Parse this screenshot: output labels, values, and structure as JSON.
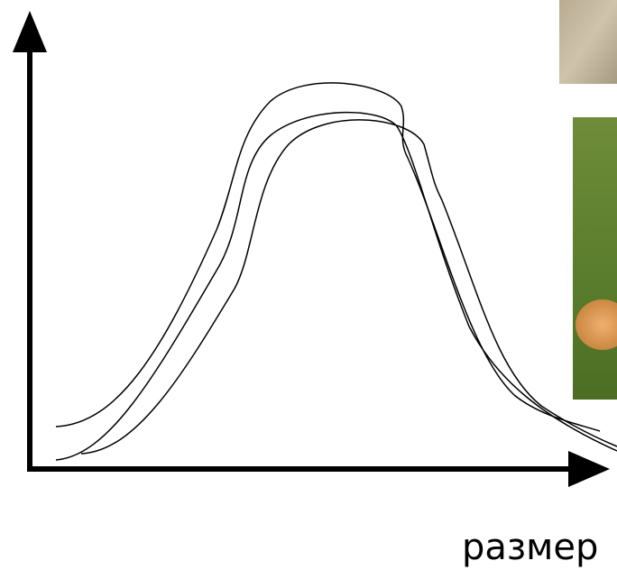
{
  "axis_label": "размер"
}
